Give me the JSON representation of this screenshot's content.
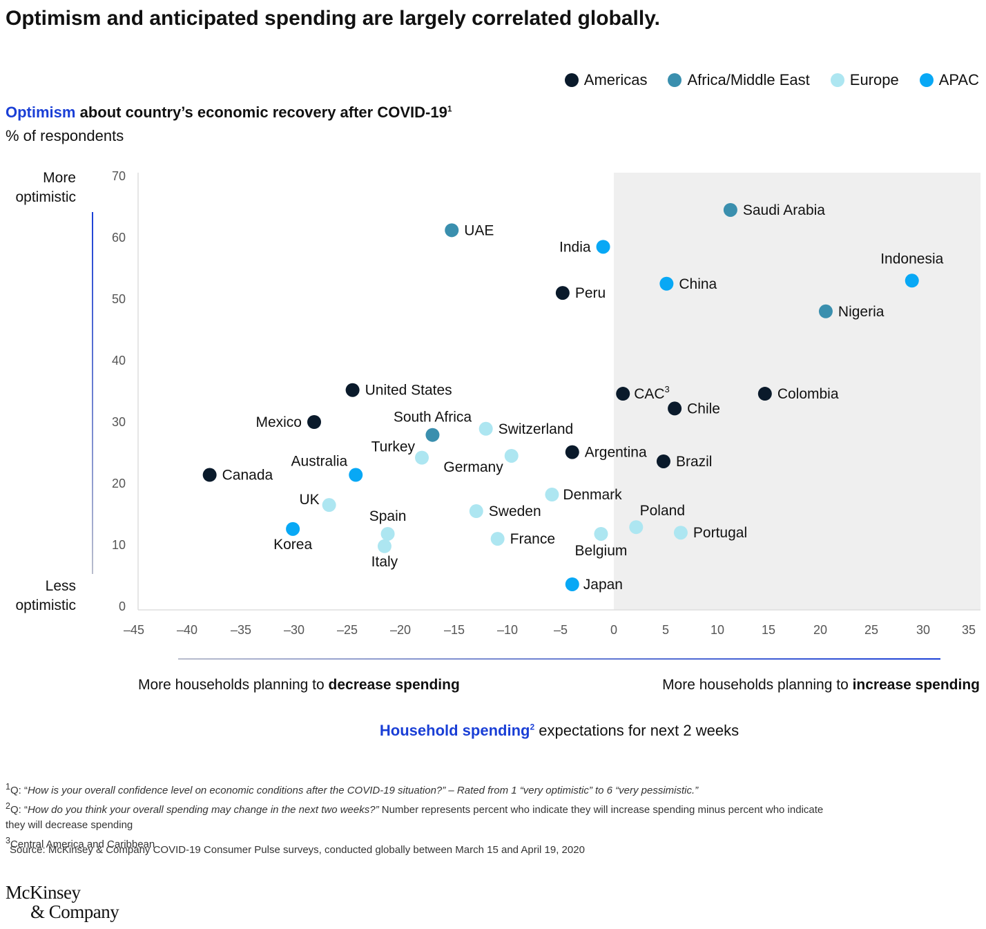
{
  "title": "Optimism and anticipated spending are largely correlated globally.",
  "legend": [
    {
      "label": "Americas",
      "color": "#0a1a2b"
    },
    {
      "label": "Africa/Middle East",
      "color": "#3a8fae"
    },
    {
      "label": "Europe",
      "color": "#ade6f1"
    },
    {
      "label": "APAC",
      "color": "#08a8f5"
    }
  ],
  "y_title": {
    "highlight": "Optimism",
    "rest": " about country’s economic recovery after COVID-19",
    "sup": "1",
    "units": "% of respondents"
  },
  "y_ends": {
    "top_line1": "More",
    "top_line2": "optimistic",
    "bottom_line1": "Less",
    "bottom_line2": "optimistic"
  },
  "x_sides": {
    "left_prefix": "More households planning to ",
    "left_bold": "decrease spending",
    "right_prefix": "More households planning to ",
    "right_bold": "increase spending"
  },
  "x_title": {
    "highlight": "Household spending",
    "sup": "2",
    "rest": " expectations for next 2 weeks"
  },
  "footnotes": {
    "f1_sup": "1",
    "f1_prefix": "Q: “",
    "f1_italic": "How is your overall confidence level on economic conditions after the COVID-19 situation?” – Rated from 1 “very optimistic” to 6 “very pessimistic.”",
    "f2_sup": "2",
    "f2_prefix": "Q: “",
    "f2_italic": "How do you think your overall spending may change in the next two weeks?”",
    "f2_rest": " Number represents percent who indicate they will increase spending minus percent who indicate they will decrease spending",
    "f3_sup": "3",
    "f3_text": "Central America and Caribbean"
  },
  "source": "Source: McKinsey & Company COVID-19 Consumer Pulse surveys, conducted globally between March 15 and April 19, 2020",
  "logo": {
    "line1": "McKinsey",
    "line2": "& Company"
  },
  "chart_data": {
    "type": "scatter",
    "xlim": [
      -45,
      35
    ],
    "ylim": [
      0,
      70
    ],
    "xticks": [
      "–45",
      "–40",
      "–35",
      "–30",
      "–25",
      "–20",
      "–15",
      "–10",
      "–5",
      "0",
      "5",
      "10",
      "15",
      "20",
      "25",
      "30",
      "35"
    ],
    "yticks": [
      "0",
      "10",
      "20",
      "30",
      "40",
      "50",
      "60",
      "70"
    ],
    "shaded_region": "x ≥ 0",
    "points": [
      {
        "label": "Saudi Arabia",
        "region": "Africa/Middle East",
        "x": 11.5,
        "y": 64.5
      },
      {
        "label": "UAE",
        "region": "Africa/Middle East",
        "x": -15.2,
        "y": 61.2
      },
      {
        "label": "India",
        "region": "APAC",
        "x": -1.0,
        "y": 58.5
      },
      {
        "label": "Indonesia",
        "region": "APAC",
        "x": 29.4,
        "y": 53.0
      },
      {
        "label": "China",
        "region": "APAC",
        "x": 5.2,
        "y": 52.5
      },
      {
        "label": "Peru",
        "region": "Americas",
        "x": -4.8,
        "y": 51.0
      },
      {
        "label": "Nigeria",
        "region": "Africa/Middle East",
        "x": 20.9,
        "y": 48.0
      },
      {
        "label": "United States",
        "region": "Americas",
        "x": -24.5,
        "y": 35.2
      },
      {
        "label": "CAC",
        "sup": "3",
        "region": "Americas",
        "x": 0.9,
        "y": 34.6
      },
      {
        "label": "Colombia",
        "region": "Americas",
        "x": 14.9,
        "y": 34.6
      },
      {
        "label": "Chile",
        "region": "Americas",
        "x": 6.0,
        "y": 32.2
      },
      {
        "label": "Mexico",
        "region": "Americas",
        "x": -28.1,
        "y": 30.0
      },
      {
        "label": "Switzerland",
        "region": "Europe",
        "x": -12.0,
        "y": 28.9
      },
      {
        "label": "South Africa",
        "region": "Africa/Middle East",
        "x": -17.0,
        "y": 27.9
      },
      {
        "label": "Argentina",
        "region": "Americas",
        "x": -3.9,
        "y": 25.1
      },
      {
        "label": "Germany",
        "region": "Europe",
        "x": -9.6,
        "y": 24.5
      },
      {
        "label": "Turkey",
        "region": "Europe",
        "x": -18.0,
        "y": 24.2
      },
      {
        "label": "Brazil",
        "region": "Americas",
        "x": 4.9,
        "y": 23.6
      },
      {
        "label": "Canada",
        "region": "Americas",
        "x": -37.9,
        "y": 21.4
      },
      {
        "label": "Australia",
        "region": "APAC",
        "x": -24.2,
        "y": 21.4
      },
      {
        "label": "Denmark",
        "region": "Europe",
        "x": -5.8,
        "y": 18.2
      },
      {
        "label": "UK",
        "region": "Europe",
        "x": -26.7,
        "y": 16.5
      },
      {
        "label": "Sweden",
        "region": "Europe",
        "x": -12.9,
        "y": 15.5
      },
      {
        "label": "Korea",
        "region": "APAC",
        "x": -30.1,
        "y": 12.6
      },
      {
        "label": "Poland",
        "region": "Europe",
        "x": 2.2,
        "y": 12.9
      },
      {
        "label": "Portugal",
        "region": "Europe",
        "x": 6.6,
        "y": 12.0
      },
      {
        "label": "Belgium",
        "region": "Europe",
        "x": -1.2,
        "y": 11.8
      },
      {
        "label": "Spain",
        "region": "Europe",
        "x": -21.2,
        "y": 11.8
      },
      {
        "label": "France",
        "region": "Europe",
        "x": -10.9,
        "y": 11.0
      },
      {
        "label": "Italy",
        "region": "Europe",
        "x": -21.5,
        "y": 9.8
      },
      {
        "label": "Japan",
        "region": "APAC",
        "x": -3.9,
        "y": 3.6
      }
    ]
  }
}
